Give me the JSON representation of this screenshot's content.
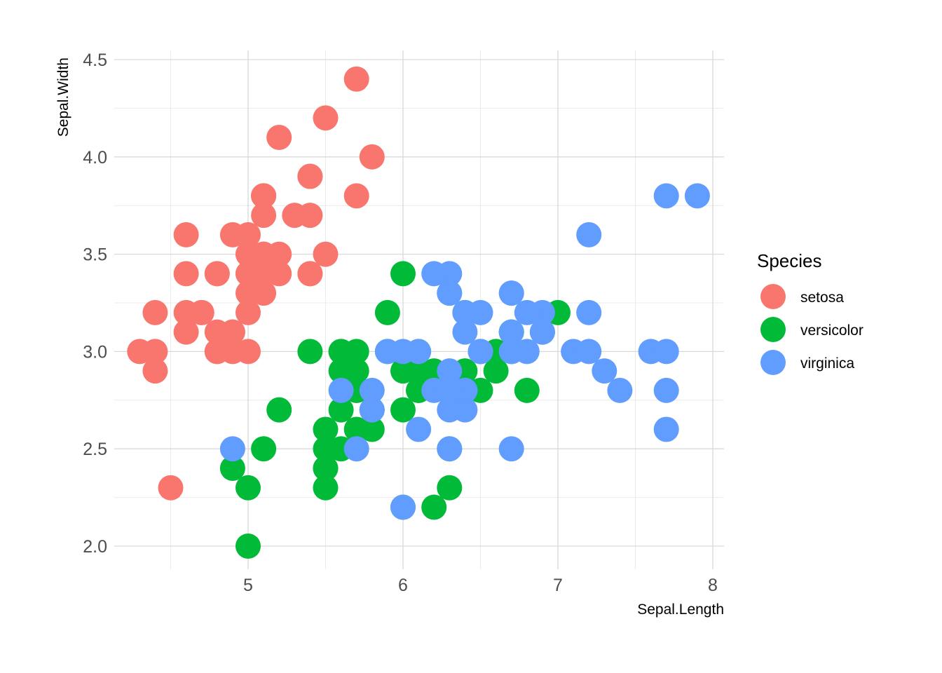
{
  "chart_data": {
    "type": "scatter",
    "xlabel": "Sepal.Length",
    "ylabel": "Sepal.Width",
    "xlim": [
      4.3,
      7.9
    ],
    "ylim": [
      2.0,
      4.4
    ],
    "x_ticks": [
      5,
      6,
      7,
      8
    ],
    "x_tick_labels": [
      "5",
      "6",
      "7",
      "8"
    ],
    "y_ticks": [
      2.0,
      2.5,
      3.0,
      3.5,
      4.0,
      4.5
    ],
    "y_tick_labels": [
      "2.0",
      "2.5",
      "3.0",
      "3.5",
      "4.0",
      "4.5"
    ],
    "grid": true,
    "legend": {
      "title": "Species",
      "position": "right"
    },
    "series": [
      {
        "name": "setosa",
        "color": "#F8766D",
        "points": [
          [
            5.1,
            3.5
          ],
          [
            4.9,
            3.0
          ],
          [
            4.7,
            3.2
          ],
          [
            4.6,
            3.1
          ],
          [
            5.0,
            3.6
          ],
          [
            5.4,
            3.9
          ],
          [
            4.6,
            3.4
          ],
          [
            5.0,
            3.4
          ],
          [
            4.4,
            2.9
          ],
          [
            4.9,
            3.1
          ],
          [
            5.4,
            3.7
          ],
          [
            4.8,
            3.4
          ],
          [
            4.8,
            3.0
          ],
          [
            4.3,
            3.0
          ],
          [
            5.8,
            4.0
          ],
          [
            5.7,
            4.4
          ],
          [
            5.4,
            3.9
          ],
          [
            5.1,
            3.5
          ],
          [
            5.7,
            3.8
          ],
          [
            5.1,
            3.8
          ],
          [
            5.4,
            3.4
          ],
          [
            5.1,
            3.7
          ],
          [
            4.6,
            3.6
          ],
          [
            5.1,
            3.3
          ],
          [
            4.8,
            3.4
          ],
          [
            5.0,
            3.0
          ],
          [
            5.0,
            3.4
          ],
          [
            5.2,
            3.5
          ],
          [
            5.2,
            3.4
          ],
          [
            4.7,
            3.2
          ],
          [
            4.8,
            3.1
          ],
          [
            5.4,
            3.4
          ],
          [
            5.2,
            4.1
          ],
          [
            5.5,
            4.2
          ],
          [
            4.9,
            3.1
          ],
          [
            5.0,
            3.2
          ],
          [
            5.5,
            3.5
          ],
          [
            4.9,
            3.6
          ],
          [
            4.4,
            3.0
          ],
          [
            5.1,
            3.4
          ],
          [
            5.0,
            3.5
          ],
          [
            4.5,
            2.3
          ],
          [
            4.4,
            3.2
          ],
          [
            5.0,
            3.5
          ],
          [
            5.1,
            3.8
          ],
          [
            4.8,
            3.0
          ],
          [
            5.1,
            3.8
          ],
          [
            4.6,
            3.2
          ],
          [
            5.3,
            3.7
          ],
          [
            5.0,
            3.3
          ]
        ]
      },
      {
        "name": "versicolor",
        "color": "#00BA38",
        "points": [
          [
            7.0,
            3.2
          ],
          [
            6.4,
            3.2
          ],
          [
            6.9,
            3.1
          ],
          [
            5.5,
            2.3
          ],
          [
            6.5,
            2.8
          ],
          [
            5.7,
            2.8
          ],
          [
            6.3,
            3.3
          ],
          [
            4.9,
            2.4
          ],
          [
            6.6,
            2.9
          ],
          [
            5.2,
            2.7
          ],
          [
            5.0,
            2.0
          ],
          [
            5.9,
            3.0
          ],
          [
            6.0,
            2.2
          ],
          [
            6.1,
            2.9
          ],
          [
            5.6,
            2.9
          ],
          [
            6.7,
            3.1
          ],
          [
            5.6,
            3.0
          ],
          [
            5.8,
            2.7
          ],
          [
            6.2,
            2.2
          ],
          [
            5.6,
            2.5
          ],
          [
            5.9,
            3.2
          ],
          [
            6.1,
            2.8
          ],
          [
            6.3,
            2.5
          ],
          [
            6.1,
            2.8
          ],
          [
            6.4,
            2.9
          ],
          [
            6.6,
            3.0
          ],
          [
            6.8,
            2.8
          ],
          [
            6.7,
            3.0
          ],
          [
            6.0,
            2.9
          ],
          [
            5.7,
            2.6
          ],
          [
            5.5,
            2.4
          ],
          [
            5.5,
            2.4
          ],
          [
            5.8,
            2.7
          ],
          [
            6.0,
            2.7
          ],
          [
            5.4,
            3.0
          ],
          [
            6.0,
            3.4
          ],
          [
            6.7,
            3.1
          ],
          [
            6.3,
            2.3
          ],
          [
            5.6,
            3.0
          ],
          [
            5.5,
            2.5
          ],
          [
            5.5,
            2.6
          ],
          [
            6.1,
            3.0
          ],
          [
            5.8,
            2.6
          ],
          [
            5.0,
            2.3
          ],
          [
            5.6,
            2.7
          ],
          [
            5.7,
            3.0
          ],
          [
            5.7,
            2.9
          ],
          [
            6.2,
            2.9
          ],
          [
            5.1,
            2.5
          ],
          [
            5.7,
            2.8
          ]
        ]
      },
      {
        "name": "virginica",
        "color": "#619CFF",
        "points": [
          [
            6.3,
            3.3
          ],
          [
            5.8,
            2.7
          ],
          [
            7.1,
            3.0
          ],
          [
            6.3,
            2.9
          ],
          [
            6.5,
            3.0
          ],
          [
            7.6,
            3.0
          ],
          [
            4.9,
            2.5
          ],
          [
            7.3,
            2.9
          ],
          [
            6.7,
            2.5
          ],
          [
            7.2,
            3.6
          ],
          [
            6.5,
            3.2
          ],
          [
            6.4,
            2.7
          ],
          [
            6.8,
            3.0
          ],
          [
            5.7,
            2.5
          ],
          [
            5.8,
            2.8
          ],
          [
            6.4,
            3.2
          ],
          [
            6.5,
            3.0
          ],
          [
            7.7,
            3.8
          ],
          [
            7.7,
            2.6
          ],
          [
            6.0,
            2.2
          ],
          [
            6.9,
            3.2
          ],
          [
            5.6,
            2.8
          ],
          [
            7.7,
            2.8
          ],
          [
            6.3,
            2.7
          ],
          [
            6.7,
            3.3
          ],
          [
            7.2,
            3.2
          ],
          [
            6.2,
            2.8
          ],
          [
            6.1,
            3.0
          ],
          [
            6.4,
            2.8
          ],
          [
            7.2,
            3.0
          ],
          [
            7.4,
            2.8
          ],
          [
            7.9,
            3.8
          ],
          [
            6.4,
            2.8
          ],
          [
            6.3,
            2.8
          ],
          [
            6.1,
            2.6
          ],
          [
            7.7,
            3.0
          ],
          [
            6.3,
            3.4
          ],
          [
            6.4,
            3.1
          ],
          [
            6.0,
            3.0
          ],
          [
            6.9,
            3.1
          ],
          [
            6.7,
            3.1
          ],
          [
            6.9,
            3.1
          ],
          [
            5.8,
            2.7
          ],
          [
            6.8,
            3.2
          ],
          [
            6.7,
            3.3
          ],
          [
            6.7,
            3.0
          ],
          [
            6.3,
            2.5
          ],
          [
            6.5,
            3.0
          ],
          [
            6.2,
            3.4
          ],
          [
            5.9,
            3.0
          ]
        ]
      }
    ]
  }
}
